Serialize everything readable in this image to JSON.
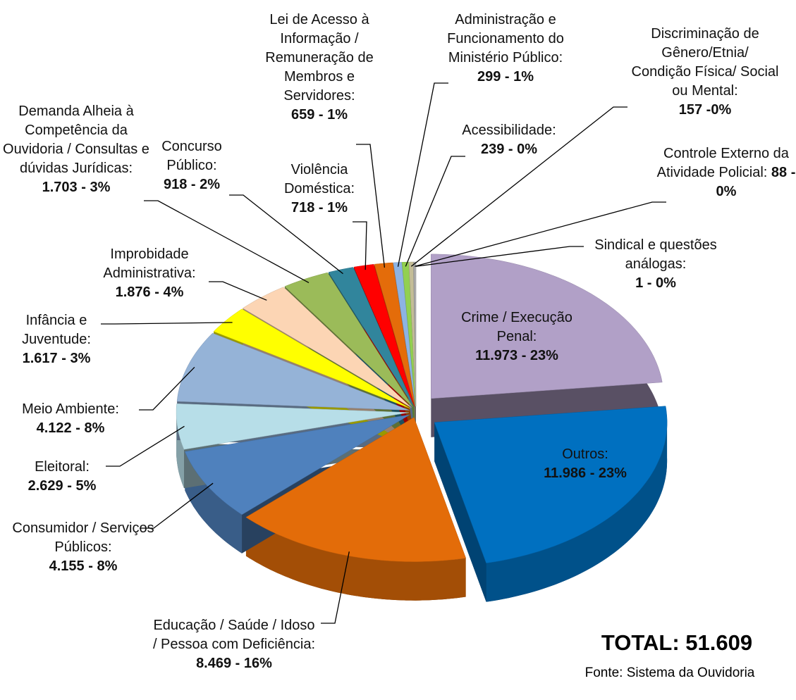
{
  "chart_data": {
    "type": "pie",
    "categories": [
      "Crime / Execução Penal:",
      "Outros:",
      "Educação / Saúde / Idoso / Pessoa com Deficiência:",
      "Consumidor / Serviços Públicos:",
      "Eleitoral:",
      "Meio Ambiente:",
      "Infância e Juventude:",
      "Improbidade Administrativa:",
      "Demanda Alheia à Competência da Ouvidoria / Consultas e dúvidas Jurídicas:",
      "Concurso Público:",
      "Violência Doméstica:",
      "Lei de Acesso à Informação / Remuneração de Membros e Servidores:",
      "Administração e Funcionamento do Ministério Público:",
      "Acessibilidade:",
      "Discriminação de Gênero/Etnia/ Condição Física/ Social ou Mental:",
      "Controle Externo da Atividade Policial:",
      "Sindical e questões análogas:"
    ],
    "values": [
      11973,
      11986,
      8469,
      4155,
      2629,
      4122,
      1617,
      1876,
      1703,
      918,
      718,
      659,
      299,
      239,
      157,
      88,
      1
    ],
    "value_labels": [
      "11.973 - 23%",
      "11.986 - 23%",
      "8.469 -  16%",
      "4.155 - 8%",
      "2.629 - 5%",
      "4.122 - 8%",
      "1.617 - 3%",
      "1.876 - 4%",
      "1.703 - 3%",
      "918 - 2%",
      "718 - 1%",
      "659 - 1%",
      "299 - 1%",
      "239 - 0%",
      "157 -0%",
      "88 - 0%",
      "1 - 0%"
    ],
    "colors": [
      "#b1a0c7",
      "#0070c0",
      "#e36c09",
      "#4f81bd",
      "#b7dee8",
      "#95b3d7",
      "#ffff00",
      "#fcd5b4",
      "#9bbb59",
      "#31859c",
      "#ff0000",
      "#e46c0a",
      "#8db3e2",
      "#92d050",
      "#c4bd97",
      "#a6a6a6",
      "#d9d9d9"
    ],
    "total_label": "TOTAL: 51.609",
    "source": "Fonte: Sistema da Ouvidoria"
  }
}
